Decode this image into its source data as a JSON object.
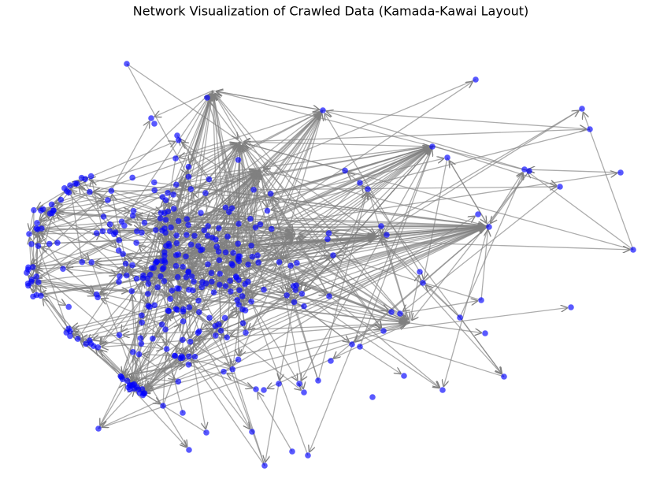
{
  "title": "Network Visualization of Crawled Data (Kamada-Kawai Layout)"
}
